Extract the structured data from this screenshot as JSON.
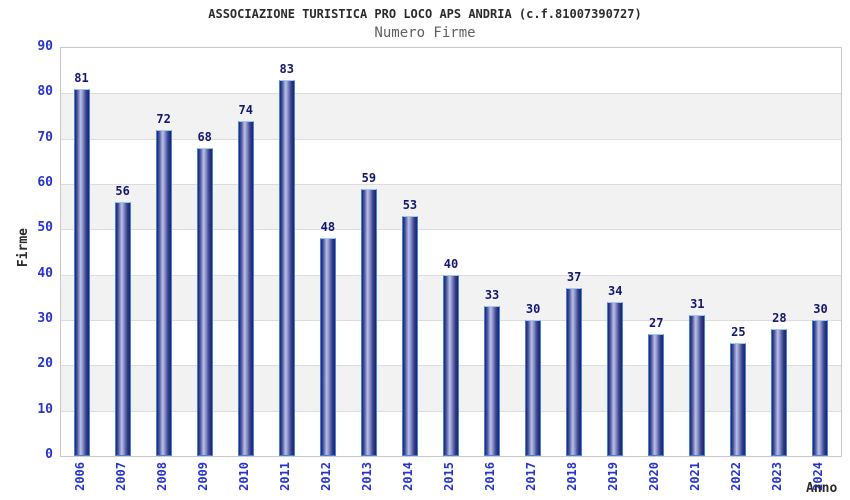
{
  "header": {
    "title": "ASSOCIAZIONE TURISTICA PRO LOCO APS ANDRIA (c.f.81007390727)",
    "subtitle": "Numero Firme"
  },
  "chart_data": {
    "type": "bar",
    "title": "ASSOCIAZIONE TURISTICA PRO LOCO APS ANDRIA (c.f.81007390727)",
    "subtitle": "Numero Firme",
    "xlabel": "Anno",
    "ylabel": "Firme",
    "categories": [
      "2006",
      "2007",
      "2008",
      "2009",
      "2010",
      "2011",
      "2012",
      "2013",
      "2014",
      "2015",
      "2016",
      "2017",
      "2018",
      "2019",
      "2020",
      "2021",
      "2022",
      "2023",
      "2024"
    ],
    "values": [
      81,
      56,
      72,
      68,
      74,
      83,
      48,
      59,
      53,
      40,
      33,
      30,
      37,
      34,
      27,
      31,
      25,
      28,
      30
    ],
    "ylim": [
      0,
      90
    ],
    "yticks": [
      0,
      10,
      20,
      30,
      40,
      50,
      60,
      70,
      80,
      90
    ],
    "grid": true,
    "alternating_bands": true,
    "legend": "none"
  },
  "colors": {
    "tick_label": "#2633cc",
    "value_label": "#13186e",
    "bar_border": "#4285d6",
    "bar_dark": "#1b2370",
    "bar_light": "#b9c1e6",
    "band_fill": "#f2f2f2",
    "gridline": "#dcdcdc",
    "plot_border": "#c9c9c9",
    "title_color": "#2b2b2b",
    "subtitle_color": "#606060"
  }
}
